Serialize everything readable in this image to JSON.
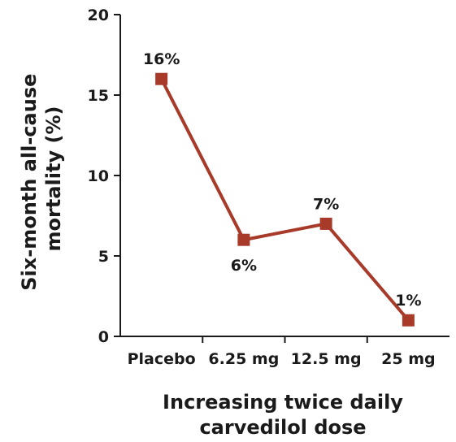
{
  "chart_data": {
    "type": "line",
    "categories": [
      "Placebo",
      "6.25 mg",
      "12.5 mg",
      "25 mg"
    ],
    "series": [
      {
        "values": [
          16,
          6,
          7,
          1
        ],
        "color": "#a83a2a",
        "marker": "square"
      }
    ],
    "data_labels": [
      "16%",
      "6%",
      "7%",
      "1%"
    ],
    "ylabel_lines": [
      "Six-month all-cause",
      "mortality (%)"
    ],
    "xlabel_lines": [
      "Increasing twice daily",
      "carvedilol dose"
    ],
    "ylim": [
      0,
      20
    ],
    "yticks": [
      0,
      5,
      10,
      15,
      20
    ],
    "grid": false,
    "axis_color": "#1a1a1a"
  }
}
